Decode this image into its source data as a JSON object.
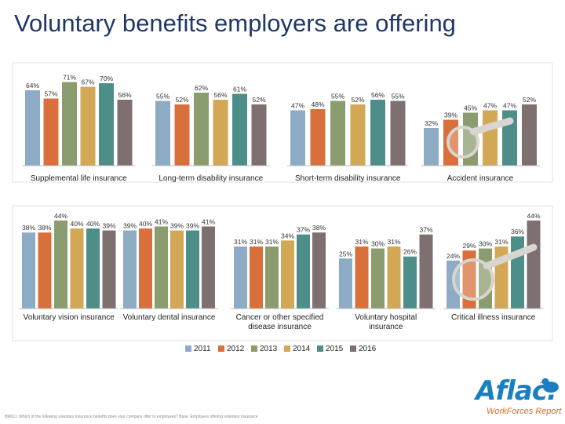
{
  "title": "Voluntary benefits employers are offering",
  "footnote": "BM011. Which of the following voluntary insurance benefits does your company offer to employees? Base: Employers offering voluntary insurance",
  "logo": {
    "word": "Aflac.",
    "subtitle": "WorkForces Report"
  },
  "colors": {
    "2011": "#8eabc6",
    "2012": "#d9703b",
    "2013": "#8b9d6f",
    "2014": "#d2a756",
    "2015": "#4d8f88",
    "2016": "#7e706f"
  },
  "chart_data": {
    "type": "bar",
    "series_names": [
      "2011",
      "2012",
      "2013",
      "2014",
      "2015",
      "2016"
    ],
    "legend_position": "bottom",
    "panels": [
      {
        "label": "Supplemental life insurance",
        "values": [
          64,
          57,
          71,
          67,
          70,
          56
        ],
        "value_labels": [
          "64%",
          "57%",
          "71%",
          "67%",
          "70%",
          "56%"
        ]
      },
      {
        "label": "Long-term disability insurance",
        "values": [
          55,
          52,
          62,
          56,
          61,
          52
        ],
        "value_labels": [
          "55%",
          "52%",
          "62%",
          "56%",
          "61%",
          "52%"
        ]
      },
      {
        "label": "Short-term disability insurance",
        "values": [
          47,
          48,
          55,
          52,
          56,
          55
        ],
        "value_labels": [
          "47%",
          "48%",
          "55%",
          "52%",
          "56%",
          "55%"
        ]
      },
      {
        "label": "Accident insurance",
        "values": [
          32,
          39,
          45,
          47,
          47,
          52
        ],
        "value_labels": [
          "32%",
          "39%",
          "45%",
          "47%",
          "47%",
          "52%"
        ]
      },
      {
        "label": "Voluntary vision insurance",
        "values": [
          38,
          38,
          44,
          40,
          40,
          39
        ],
        "value_labels": [
          "38%",
          "38%",
          "44%",
          "40%",
          "40%",
          "39%"
        ]
      },
      {
        "label": "Voluntary dental insurance",
        "values": [
          39,
          40,
          41,
          39,
          39,
          41
        ],
        "value_labels": [
          "39%",
          "40%",
          "41%",
          "39%",
          "39%",
          "41%"
        ]
      },
      {
        "label": "Cancer or other specified disease insurance",
        "label_lines": [
          "Cancer or other specified",
          "disease insurance"
        ],
        "values": [
          31,
          31,
          31,
          34,
          37,
          38
        ],
        "value_labels": [
          "31%",
          "31%",
          "31%",
          "34%",
          "37%",
          "38%"
        ]
      },
      {
        "label": "Voluntary hospital insurance",
        "label_lines": [
          "Voluntary hospital",
          "insurance"
        ],
        "values": [
          25,
          31,
          30,
          31,
          26,
          37
        ],
        "value_labels": [
          "25%",
          "31%",
          "30%",
          "31%",
          "26%",
          "37%"
        ]
      },
      {
        "label": "Critical illness insurance",
        "values": [
          24,
          29,
          30,
          31,
          36,
          44
        ],
        "value_labels": [
          "24%",
          "29%",
          "30%",
          "31%",
          "36%",
          "44%"
        ]
      }
    ]
  }
}
